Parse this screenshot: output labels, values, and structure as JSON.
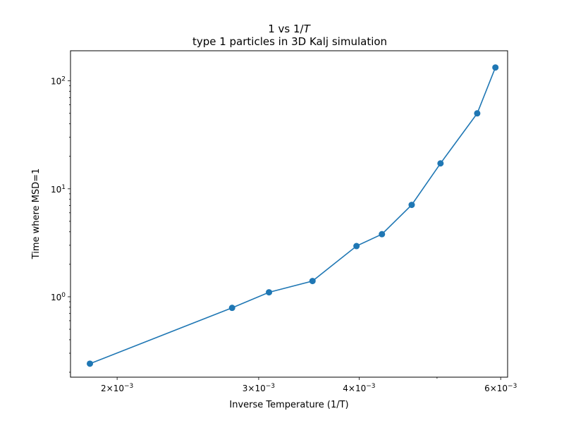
{
  "chart_data": {
    "type": "line",
    "title": "1 vs 1/",
    "title_italic": "T",
    "subtitle": "type 1 particles in 3D Kalj simulation",
    "xlabel": "Inverse Temperature (1/T)",
    "ylabel": "Time where MSD=1",
    "xscale": "log",
    "yscale": "log",
    "xlim": [
      0.00175,
      0.00612
    ],
    "ylim": [
      0.18,
      190
    ],
    "grid": false,
    "series": [
      {
        "color": "#1f77b4",
        "marker": "circle",
        "x": [
          0.00185,
          0.00278,
          0.00309,
          0.0035,
          0.00397,
          0.00427,
          0.00465,
          0.00505,
          0.00561,
          0.00591
        ],
        "y": [
          0.24,
          0.79,
          1.1,
          1.4,
          2.95,
          3.8,
          7.1,
          17.2,
          50.0,
          133.0
        ]
      }
    ],
    "xticks": [
      {
        "value": 0.002,
        "base": "2×10",
        "exp": "−3"
      },
      {
        "value": 0.003,
        "base": "3×10",
        "exp": "−3"
      },
      {
        "value": 0.004,
        "base": "4×10",
        "exp": "−3"
      },
      {
        "value": 0.006,
        "base": "6×10",
        "exp": "−3"
      }
    ],
    "yticks": [
      {
        "value": 1,
        "base": "10",
        "exp": "0"
      },
      {
        "value": 10,
        "base": "10",
        "exp": "1"
      },
      {
        "value": 100,
        "base": "10",
        "exp": "2"
      }
    ],
    "minor_xticks": [
      0.005
    ],
    "minor_yticks": [
      0.2,
      0.3,
      0.4,
      0.5,
      0.6,
      0.7,
      0.8,
      0.9,
      2,
      3,
      4,
      5,
      6,
      7,
      8,
      9,
      20,
      30,
      40,
      50,
      60,
      70,
      80,
      90
    ]
  }
}
